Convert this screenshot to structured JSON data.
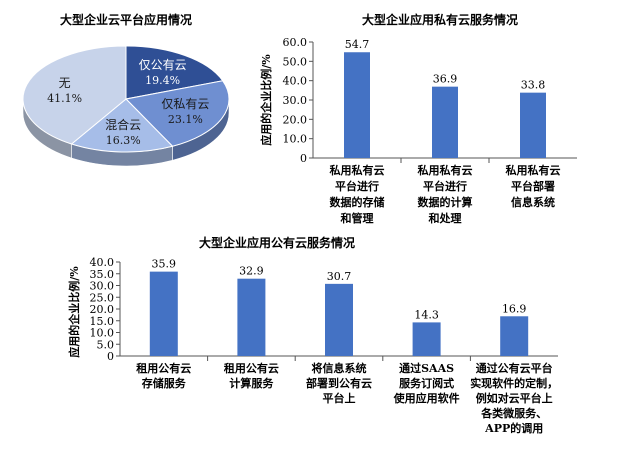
{
  "chart_data": [
    {
      "type": "pie",
      "title": "大型企业云平台应用情况",
      "categories": [
        "仅公有云",
        "仅私有云",
        "混合云",
        "无"
      ],
      "values": [
        19.4,
        23.1,
        16.3,
        41.1
      ],
      "labels": [
        "19.4%",
        "23.1%",
        "16.3%",
        "41.1%"
      ],
      "colors": [
        "#2f4f95",
        "#6f8fd1",
        "#a6bde8",
        "#c7d3ea"
      ]
    },
    {
      "type": "bar",
      "title": "大型企业应用私有云服务情况",
      "ylabel": "应用的企业比例/%",
      "ylim": [
        0,
        60
      ],
      "yticks": [
        "0",
        "10.0",
        "20.0",
        "30.0",
        "40.0",
        "50.0",
        "60.0"
      ],
      "categories": [
        [
          "私用私有云",
          "平台进行",
          "数据的存储",
          "和管理"
        ],
        [
          "私用私有云",
          "平台进行",
          "数据的计算",
          "和处理"
        ],
        [
          "私用私有云",
          "平台部署",
          "信息系统"
        ]
      ],
      "values": [
        54.7,
        36.9,
        33.8
      ],
      "labels": [
        "54.7",
        "36.9",
        "33.8"
      ],
      "color": "#4472c4"
    },
    {
      "type": "bar",
      "title": "大型企业应用公有云服务情况",
      "ylabel": "应用的企业比例/%",
      "ylim": [
        0,
        40
      ],
      "yticks": [
        "0",
        "5.0",
        "10.0",
        "15.0",
        "20.0",
        "25.0",
        "30.0",
        "35.0",
        "40.0"
      ],
      "categories": [
        [
          "租用公有云",
          "存储服务"
        ],
        [
          "租用公有云",
          "计算服务"
        ],
        [
          "将信息系统",
          "部署到公有云",
          "平台上"
        ],
        [
          "通过SAAS",
          "服务订阅式",
          "使用应用软件"
        ],
        [
          "通过公有云平台",
          "实现软件的定制，",
          "例如对云平台上",
          "各类微服务、",
          "APP的调用"
        ]
      ],
      "values": [
        35.9,
        32.9,
        30.7,
        14.3,
        16.9
      ],
      "labels": [
        "35.9",
        "32.9",
        "30.7",
        "14.3",
        "16.9"
      ],
      "color": "#4472c4"
    }
  ]
}
